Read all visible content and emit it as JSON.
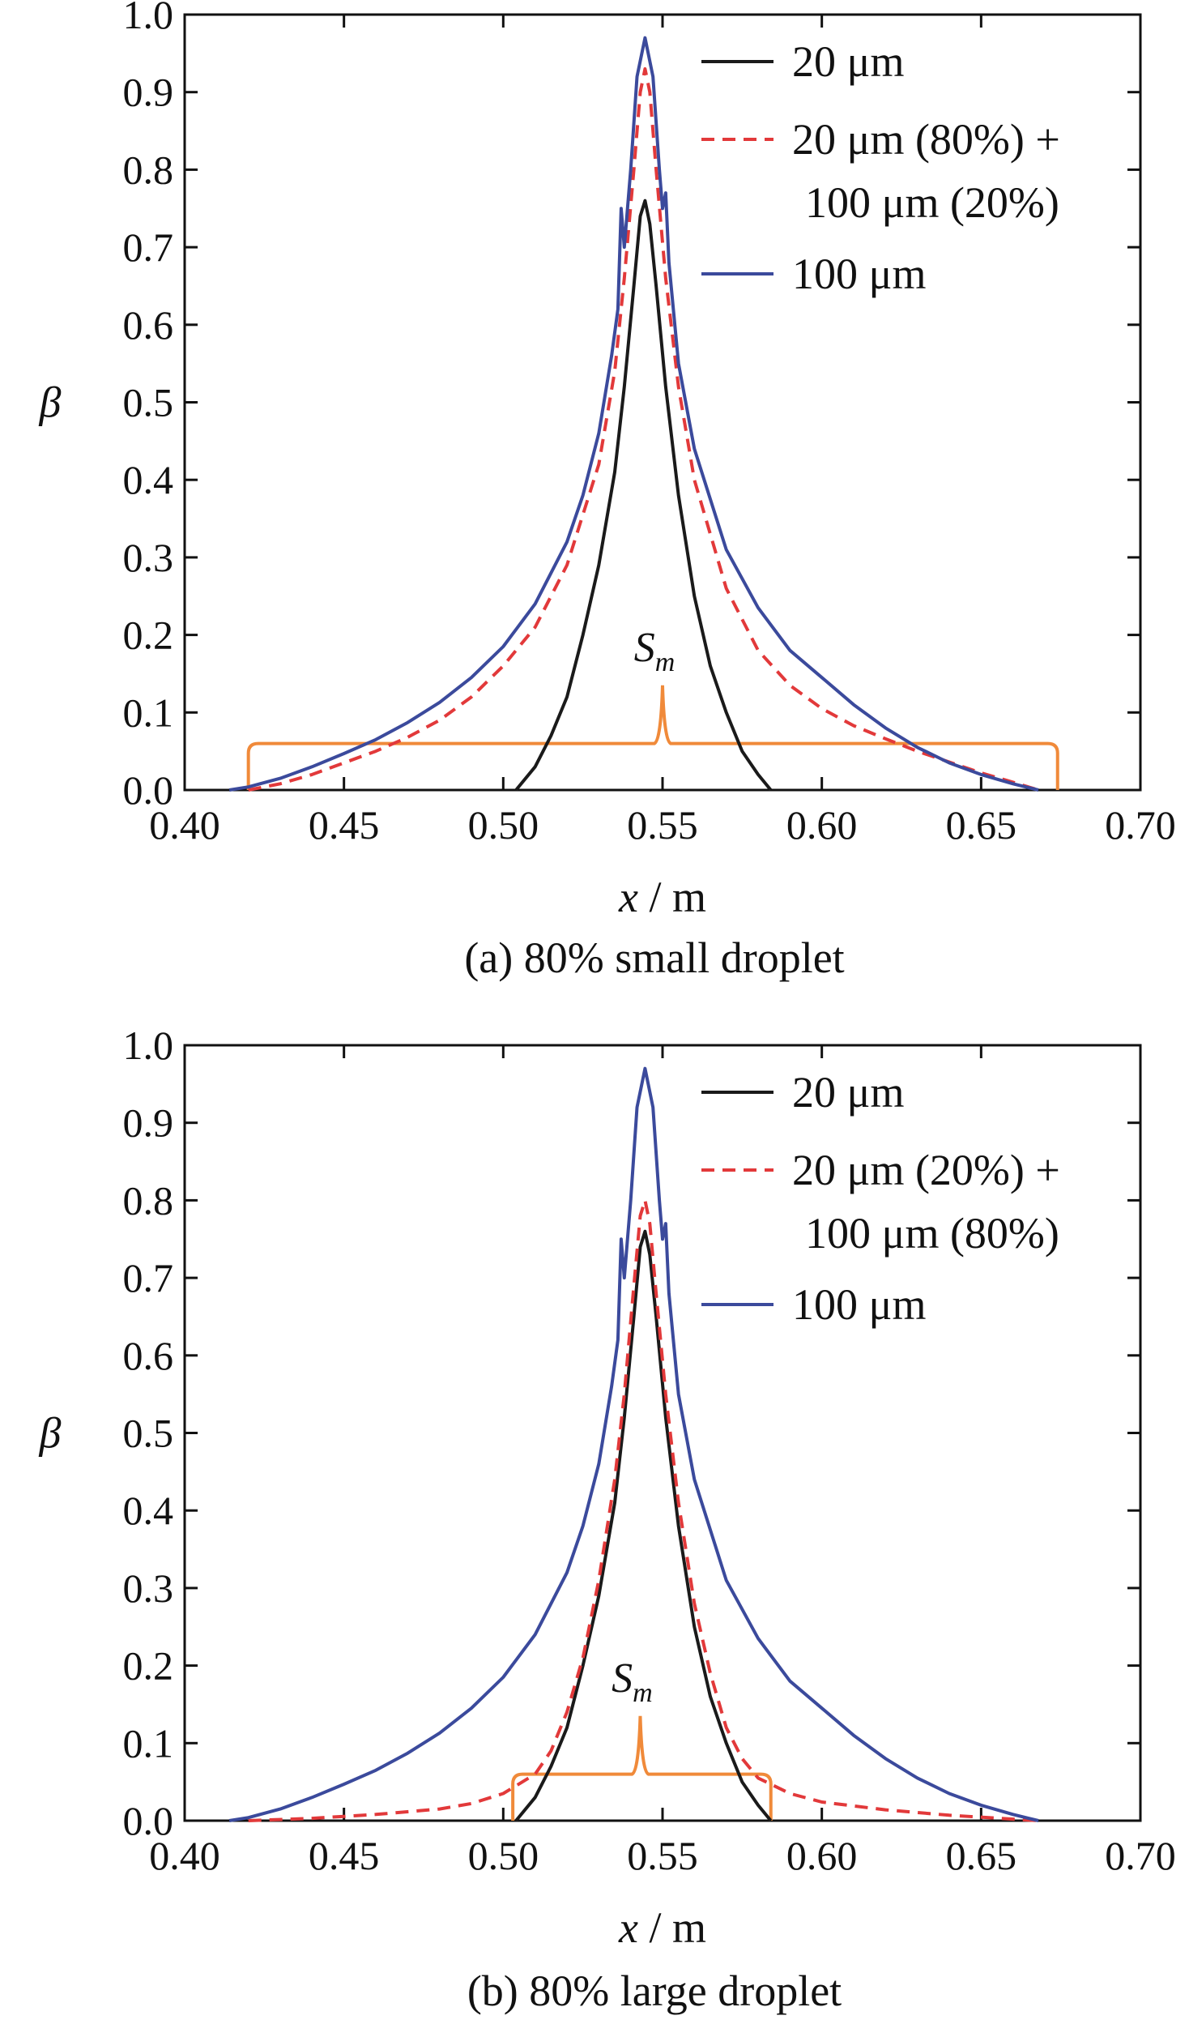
{
  "chart_data": [
    {
      "type": "line",
      "caption": "(a) 80% small droplet",
      "xlabel_italic": "x",
      "xlabel_unit": " / m",
      "ylabel": "β",
      "xlim": [
        0.4,
        0.7
      ],
      "ylim": [
        0.0,
        1.0
      ],
      "xticks": [
        "0.40",
        "0.45",
        "0.50",
        "0.55",
        "0.60",
        "0.65",
        "0.70"
      ],
      "yticks": [
        "0.0",
        "0.1",
        "0.2",
        "0.3",
        "0.4",
        "0.5",
        "0.6",
        "0.7",
        "0.8",
        "0.9",
        "1.0"
      ],
      "grid": false,
      "legend_position": "top-right",
      "series": [
        {
          "name": "20 μm",
          "color": "#1a1a1a",
          "dash": "solid",
          "points": [
            [
              0.504,
              0.0
            ],
            [
              0.51,
              0.03
            ],
            [
              0.515,
              0.07
            ],
            [
              0.52,
              0.12
            ],
            [
              0.525,
              0.2
            ],
            [
              0.53,
              0.29
            ],
            [
              0.535,
              0.41
            ],
            [
              0.538,
              0.52
            ],
            [
              0.541,
              0.65
            ],
            [
              0.543,
              0.74
            ],
            [
              0.5445,
              0.76
            ],
            [
              0.546,
              0.73
            ],
            [
              0.548,
              0.65
            ],
            [
              0.551,
              0.52
            ],
            [
              0.555,
              0.38
            ],
            [
              0.56,
              0.25
            ],
            [
              0.565,
              0.16
            ],
            [
              0.57,
              0.1
            ],
            [
              0.575,
              0.05
            ],
            [
              0.58,
              0.02
            ],
            [
              0.584,
              0.0
            ]
          ]
        },
        {
          "name": "20 μm (80%) + 100 μm (20%)",
          "color": "#e2393a",
          "dash": "dashed",
          "points": [
            [
              0.42,
              0.0
            ],
            [
              0.43,
              0.008
            ],
            [
              0.44,
              0.02
            ],
            [
              0.45,
              0.035
            ],
            [
              0.46,
              0.05
            ],
            [
              0.47,
              0.068
            ],
            [
              0.48,
              0.09
            ],
            [
              0.49,
              0.12
            ],
            [
              0.5,
              0.16
            ],
            [
              0.51,
              0.21
            ],
            [
              0.52,
              0.29
            ],
            [
              0.53,
              0.42
            ],
            [
              0.535,
              0.54
            ],
            [
              0.538,
              0.66
            ],
            [
              0.541,
              0.8
            ],
            [
              0.543,
              0.9
            ],
            [
              0.5445,
              0.93
            ],
            [
              0.546,
              0.9
            ],
            [
              0.548,
              0.8
            ],
            [
              0.551,
              0.66
            ],
            [
              0.555,
              0.52
            ],
            [
              0.56,
              0.4
            ],
            [
              0.57,
              0.26
            ],
            [
              0.58,
              0.18
            ],
            [
              0.59,
              0.135
            ],
            [
              0.6,
              0.105
            ],
            [
              0.61,
              0.083
            ],
            [
              0.62,
              0.066
            ],
            [
              0.63,
              0.05
            ],
            [
              0.64,
              0.036
            ],
            [
              0.65,
              0.022
            ],
            [
              0.66,
              0.01
            ],
            [
              0.668,
              0.0
            ]
          ]
        },
        {
          "name": "100 μm",
          "color": "#3b4a9c",
          "dash": "solid",
          "points": [
            [
              0.414,
              0.0
            ],
            [
              0.42,
              0.004
            ],
            [
              0.43,
              0.015
            ],
            [
              0.44,
              0.03
            ],
            [
              0.45,
              0.047
            ],
            [
              0.46,
              0.065
            ],
            [
              0.47,
              0.087
            ],
            [
              0.48,
              0.113
            ],
            [
              0.49,
              0.145
            ],
            [
              0.5,
              0.185
            ],
            [
              0.51,
              0.24
            ],
            [
              0.52,
              0.32
            ],
            [
              0.525,
              0.38
            ],
            [
              0.53,
              0.46
            ],
            [
              0.534,
              0.56
            ],
            [
              0.536,
              0.62
            ],
            [
              0.537,
              0.75
            ],
            [
              0.538,
              0.7
            ],
            [
              0.54,
              0.8
            ],
            [
              0.542,
              0.92
            ],
            [
              0.5445,
              0.97
            ],
            [
              0.547,
              0.92
            ],
            [
              0.549,
              0.8
            ],
            [
              0.55,
              0.75
            ],
            [
              0.551,
              0.77
            ],
            [
              0.552,
              0.68
            ],
            [
              0.555,
              0.55
            ],
            [
              0.56,
              0.44
            ],
            [
              0.57,
              0.31
            ],
            [
              0.58,
              0.235
            ],
            [
              0.59,
              0.18
            ],
            [
              0.6,
              0.145
            ],
            [
              0.61,
              0.11
            ],
            [
              0.62,
              0.08
            ],
            [
              0.63,
              0.055
            ],
            [
              0.64,
              0.035
            ],
            [
              0.65,
              0.02
            ],
            [
              0.66,
              0.008
            ],
            [
              0.668,
              0.0
            ]
          ]
        }
      ],
      "annotation": {
        "label_main": "S",
        "label_sub": "m",
        "color": "#f08a3a",
        "bracket_x": [
          0.42,
          0.674
        ],
        "bracket_y": 0.06,
        "peak_x": 0.55,
        "peak_y": 0.135
      }
    },
    {
      "type": "line",
      "caption": "(b) 80% large droplet",
      "xlabel_italic": "x",
      "xlabel_unit": " / m",
      "ylabel": "β",
      "xlim": [
        0.4,
        0.7
      ],
      "ylim": [
        0.0,
        1.0
      ],
      "xticks": [
        "0.40",
        "0.45",
        "0.50",
        "0.55",
        "0.60",
        "0.65",
        "0.70"
      ],
      "yticks": [
        "0.0",
        "0.1",
        "0.2",
        "0.3",
        "0.4",
        "0.5",
        "0.6",
        "0.7",
        "0.8",
        "0.9",
        "1.0"
      ],
      "grid": false,
      "legend_position": "top-right",
      "series": [
        {
          "name": "20 μm",
          "color": "#1a1a1a",
          "dash": "solid",
          "points": [
            [
              0.504,
              0.0
            ],
            [
              0.51,
              0.03
            ],
            [
              0.515,
              0.07
            ],
            [
              0.52,
              0.12
            ],
            [
              0.525,
              0.2
            ],
            [
              0.53,
              0.29
            ],
            [
              0.535,
              0.41
            ],
            [
              0.538,
              0.52
            ],
            [
              0.541,
              0.65
            ],
            [
              0.543,
              0.74
            ],
            [
              0.5445,
              0.76
            ],
            [
              0.546,
              0.73
            ],
            [
              0.548,
              0.65
            ],
            [
              0.551,
              0.52
            ],
            [
              0.555,
              0.38
            ],
            [
              0.56,
              0.25
            ],
            [
              0.565,
              0.16
            ],
            [
              0.57,
              0.1
            ],
            [
              0.575,
              0.05
            ],
            [
              0.58,
              0.02
            ],
            [
              0.584,
              0.0
            ]
          ]
        },
        {
          "name": "20 μm (20%) + 100 μm (80%)",
          "color": "#e2393a",
          "dash": "dashed",
          "points": [
            [
              0.42,
              0.0
            ],
            [
              0.44,
              0.003
            ],
            [
              0.46,
              0.008
            ],
            [
              0.48,
              0.015
            ],
            [
              0.49,
              0.022
            ],
            [
              0.5,
              0.035
            ],
            [
              0.51,
              0.06
            ],
            [
              0.515,
              0.09
            ],
            [
              0.52,
              0.14
            ],
            [
              0.525,
              0.21
            ],
            [
              0.53,
              0.31
            ],
            [
              0.535,
              0.44
            ],
            [
              0.538,
              0.55
            ],
            [
              0.541,
              0.69
            ],
            [
              0.543,
              0.78
            ],
            [
              0.5445,
              0.8
            ],
            [
              0.546,
              0.77
            ],
            [
              0.548,
              0.68
            ],
            [
              0.551,
              0.55
            ],
            [
              0.555,
              0.41
            ],
            [
              0.56,
              0.28
            ],
            [
              0.565,
              0.19
            ],
            [
              0.57,
              0.12
            ],
            [
              0.575,
              0.08
            ],
            [
              0.58,
              0.055
            ],
            [
              0.59,
              0.035
            ],
            [
              0.6,
              0.024
            ],
            [
              0.62,
              0.014
            ],
            [
              0.64,
              0.007
            ],
            [
              0.66,
              0.002
            ],
            [
              0.668,
              0.0
            ]
          ]
        },
        {
          "name": "100 μm",
          "color": "#3b4a9c",
          "dash": "solid",
          "points": [
            [
              0.414,
              0.0
            ],
            [
              0.42,
              0.004
            ],
            [
              0.43,
              0.015
            ],
            [
              0.44,
              0.03
            ],
            [
              0.45,
              0.047
            ],
            [
              0.46,
              0.065
            ],
            [
              0.47,
              0.087
            ],
            [
              0.48,
              0.113
            ],
            [
              0.49,
              0.145
            ],
            [
              0.5,
              0.185
            ],
            [
              0.51,
              0.24
            ],
            [
              0.52,
              0.32
            ],
            [
              0.525,
              0.38
            ],
            [
              0.53,
              0.46
            ],
            [
              0.534,
              0.56
            ],
            [
              0.536,
              0.62
            ],
            [
              0.537,
              0.75
            ],
            [
              0.538,
              0.7
            ],
            [
              0.54,
              0.8
            ],
            [
              0.542,
              0.92
            ],
            [
              0.5445,
              0.97
            ],
            [
              0.547,
              0.92
            ],
            [
              0.549,
              0.8
            ],
            [
              0.55,
              0.75
            ],
            [
              0.551,
              0.77
            ],
            [
              0.552,
              0.68
            ],
            [
              0.555,
              0.55
            ],
            [
              0.56,
              0.44
            ],
            [
              0.57,
              0.31
            ],
            [
              0.58,
              0.235
            ],
            [
              0.59,
              0.18
            ],
            [
              0.6,
              0.145
            ],
            [
              0.61,
              0.11
            ],
            [
              0.62,
              0.08
            ],
            [
              0.63,
              0.055
            ],
            [
              0.64,
              0.035
            ],
            [
              0.65,
              0.02
            ],
            [
              0.66,
              0.008
            ],
            [
              0.668,
              0.0
            ]
          ]
        }
      ],
      "annotation": {
        "label_main": "S",
        "label_sub": "m",
        "color": "#f08a3a",
        "bracket_x": [
          0.503,
          0.584
        ],
        "bracket_y": 0.06,
        "peak_x": 0.543,
        "peak_y": 0.135
      }
    }
  ]
}
